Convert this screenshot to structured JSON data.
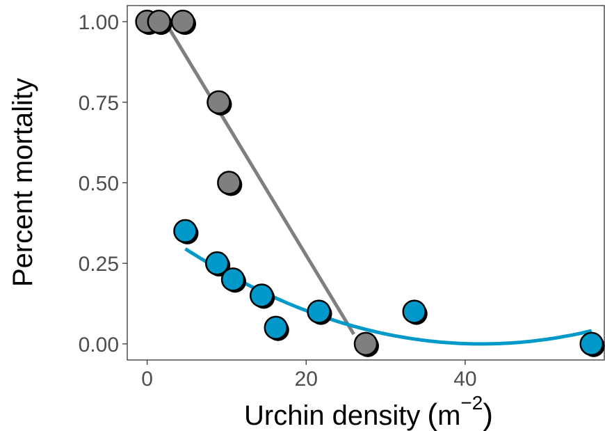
{
  "chart_data": {
    "type": "scatter",
    "xlabel": "Urchin density",
    "xlabel_unit_base": "m",
    "xlabel_unit_exponent": "−2",
    "ylabel": "Percent mortality",
    "xlim": [
      -2.5,
      57.5
    ],
    "ylim": [
      -0.05,
      1.05
    ],
    "x_ticks": [
      0,
      20,
      40
    ],
    "x_tick_labels": [
      "0",
      "20",
      "40"
    ],
    "y_ticks": [
      0,
      0.25,
      0.5,
      0.75,
      1.0
    ],
    "y_tick_labels": [
      "0.00",
      "0.25",
      "0.50",
      "0.75",
      "1.00"
    ],
    "grid": false,
    "series": [
      {
        "color": "#7f7f7f",
        "points": [
          {
            "x": 0.0,
            "y": 1.0
          },
          {
            "x": 1.5,
            "y": 1.0
          },
          {
            "x": 4.5,
            "y": 1.0
          },
          {
            "x": 9.0,
            "y": 0.75
          },
          {
            "x": 10.3,
            "y": 0.5
          },
          {
            "x": 27.5,
            "y": 0.0
          }
        ],
        "fit": {
          "type": "linear",
          "points": [
            {
              "x": 2.5,
              "y": 0.99
            },
            {
              "x": 26.0,
              "y": 0.03
            }
          ]
        }
      },
      {
        "color": "#0099c9",
        "points": [
          {
            "x": 4.8,
            "y": 0.35
          },
          {
            "x": 8.8,
            "y": 0.25
          },
          {
            "x": 10.8,
            "y": 0.2
          },
          {
            "x": 14.4,
            "y": 0.15
          },
          {
            "x": 16.2,
            "y": 0.05
          },
          {
            "x": 21.6,
            "y": 0.1
          },
          {
            "x": 33.6,
            "y": 0.1
          },
          {
            "x": 55.9,
            "y": 0.0
          }
        ],
        "fit": {
          "type": "quadratic",
          "x_range": [
            4.8,
            55.9
          ],
          "coefficients": [
            0.37604,
            -0.017894,
            0.00021279
          ]
        }
      }
    ]
  }
}
